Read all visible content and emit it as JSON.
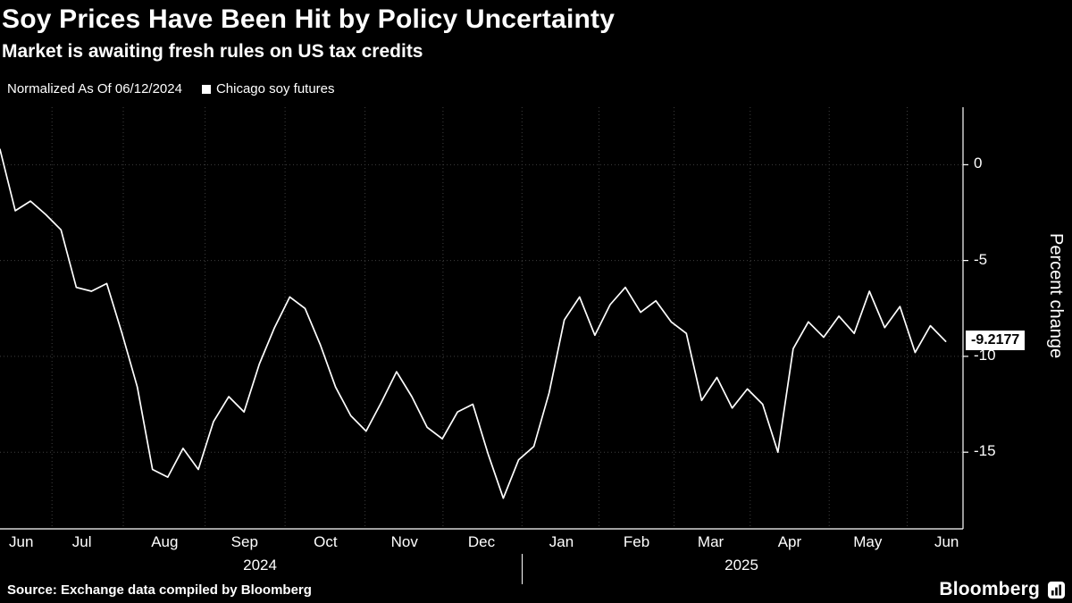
{
  "header": {
    "title": "Soy Prices Have Been Hit by Policy Uncertainty",
    "subtitle": "Market is awaiting fresh rules on US tax credits"
  },
  "legend": {
    "normalized_label": "Normalized As Of 06/12/2024",
    "series_label": "Chicago soy futures"
  },
  "footer": {
    "source": "Source: Exchange data compiled by Bloomberg",
    "brand": "Bloomberg"
  },
  "chart_data": {
    "type": "line",
    "title": "Soy Prices Have Been Hit by Policy Uncertainty",
    "subtitle": "Market is awaiting fresh rules on US tax credits",
    "x_range": "Jun 2024 - Jun 2025",
    "x_unit": "approximately weekly samples",
    "ylabel": "Percent change",
    "ylim": [
      -19,
      3
    ],
    "y_ticks": [
      0,
      -5,
      -10,
      -15
    ],
    "last_value_label": "-9.2177",
    "line_color": "#ffffff",
    "grid_color": "#3f3f3f",
    "background": "#000000",
    "series": [
      {
        "name": "Chicago soy futures",
        "values": [
          0.8,
          -2.4,
          -1.9,
          -2.6,
          -3.4,
          -6.4,
          -6.6,
          -6.2,
          -8.8,
          -11.6,
          -15.9,
          -16.3,
          -14.8,
          -15.9,
          -13.4,
          -12.1,
          -12.9,
          -10.4,
          -8.5,
          -6.9,
          -7.5,
          -9.4,
          -11.6,
          -13.1,
          -13.9,
          -12.4,
          -10.8,
          -12.1,
          -13.7,
          -14.3,
          -12.9,
          -12.5,
          -15.1,
          -17.4,
          -15.4,
          -14.7,
          -11.9,
          -8.1,
          -6.9,
          -8.9,
          -7.3,
          -6.4,
          -7.7,
          -7.1,
          -8.2,
          -8.8,
          -12.3,
          -11.1,
          -12.7,
          -11.7,
          -12.5,
          -15.0,
          -9.6,
          -8.2,
          -9.0,
          -7.9,
          -8.8,
          -6.6,
          -8.5,
          -7.4,
          -9.8,
          -8.4,
          -9.2177
        ]
      }
    ],
    "layout": {
      "legend_position": "top-left",
      "grid": "dotted",
      "axis_side": "right",
      "x_ticks": [
        {
          "label": "Jun",
          "f": 0.022
        },
        {
          "label": "Jul",
          "f": 0.085
        },
        {
          "label": "Aug",
          "f": 0.171
        },
        {
          "label": "Sep",
          "f": 0.254
        },
        {
          "label": "Oct",
          "f": 0.338
        },
        {
          "label": "Nov",
          "f": 0.42
        },
        {
          "label": "Dec",
          "f": 0.5
        },
        {
          "label": "Jan",
          "f": 0.583
        },
        {
          "label": "Feb",
          "f": 0.661
        },
        {
          "label": "Mar",
          "f": 0.738
        },
        {
          "label": "Apr",
          "f": 0.82
        },
        {
          "label": "May",
          "f": 0.901
        },
        {
          "label": "Jun",
          "f": 0.983
        }
      ],
      "year_labels": [
        {
          "label": "2024",
          "f": 0.27
        },
        {
          "label": "2025",
          "f": 0.77
        }
      ],
      "month_boundaries": [
        0.054,
        0.128,
        0.213,
        0.296,
        0.379,
        0.46,
        0.542,
        0.622,
        0.7,
        0.779,
        0.861,
        0.942
      ],
      "year_divider_f": 0.542
    }
  }
}
